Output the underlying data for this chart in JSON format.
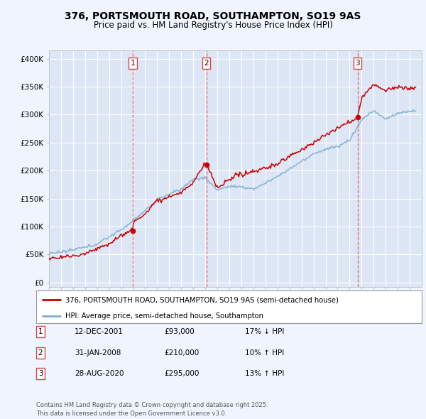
{
  "title": "376, PORTSMOUTH ROAD, SOUTHAMPTON, SO19 9AS",
  "subtitle": "Price paid vs. HM Land Registry's House Price Index (HPI)",
  "background_color": "#f0f4ff",
  "plot_bg_color": "#dce6f5",
  "grid_color": "#ffffff",
  "y_ticks": [
    0,
    50000,
    100000,
    150000,
    200000,
    250000,
    300000,
    350000,
    400000
  ],
  "y_tick_labels": [
    "£0",
    "£50K",
    "£100K",
    "£150K",
    "£200K",
    "£250K",
    "£300K",
    "£350K",
    "£400K"
  ],
  "x_start_year": 1995,
  "x_end_year": 2025,
  "hpi_color": "#7aadd4",
  "price_color": "#cc0000",
  "vline_color": "#dd4444",
  "transactions": [
    {
      "date_num": 2001.95,
      "price": 93000,
      "label": "1"
    },
    {
      "date_num": 2008.08,
      "price": 210000,
      "label": "2"
    },
    {
      "date_num": 2020.66,
      "price": 295000,
      "label": "3"
    }
  ],
  "transaction_labels": [
    {
      "num": "1",
      "date": "12-DEC-2001",
      "price": "£93,000",
      "hpi": "17% ↓ HPI"
    },
    {
      "num": "2",
      "date": "31-JAN-2008",
      "price": "£210,000",
      "hpi": "10% ↑ HPI"
    },
    {
      "num": "3",
      "date": "28-AUG-2020",
      "price": "£295,000",
      "hpi": "13% ↑ HPI"
    }
  ],
  "legend_line1": "376, PORTSMOUTH ROAD, SOUTHAMPTON, SO19 9AS (semi-detached house)",
  "legend_line2": "HPI: Average price, semi-detached house, Southampton",
  "footer": "Contains HM Land Registry data © Crown copyright and database right 2025.\nThis data is licensed under the Open Government Licence v3.0."
}
